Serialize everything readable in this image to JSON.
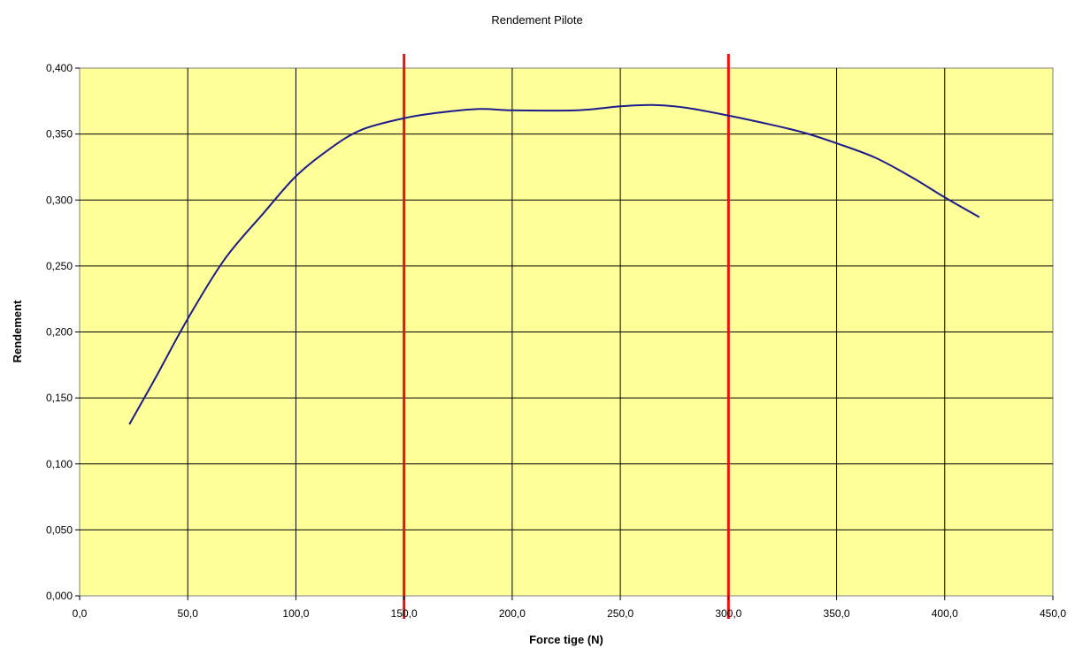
{
  "chart_data": {
    "type": "line",
    "title": "Rendement Pilote",
    "xlabel": "Force tige (N)",
    "ylabel": "Rendement",
    "xlim": [
      0,
      450
    ],
    "ylim": [
      0,
      0.4
    ],
    "x_ticks": [
      "0,0",
      "50,0",
      "100,0",
      "150,0",
      "200,0",
      "250,0",
      "300,0",
      "350,0",
      "400,0",
      "450,0"
    ],
    "y_ticks": [
      "0,000",
      "0,050",
      "0,100",
      "0,150",
      "0,200",
      "0,250",
      "0,300",
      "0,350",
      "0,400"
    ],
    "x_tick_values": [
      0,
      50,
      100,
      150,
      200,
      250,
      300,
      350,
      400,
      450
    ],
    "y_tick_values": [
      0,
      0.05,
      0.1,
      0.15,
      0.2,
      0.25,
      0.3,
      0.35,
      0.4
    ],
    "grid": true,
    "legend": "none",
    "series": [
      {
        "color": "#1c1c8c",
        "x": [
          23,
          35,
          50,
          67,
          85,
          100,
          115,
          130,
          150,
          165,
          185,
          200,
          230,
          250,
          265,
          280,
          300,
          320,
          335,
          350,
          368,
          385,
          400,
          416
        ],
        "y": [
          0.13,
          0.165,
          0.21,
          0.255,
          0.29,
          0.318,
          0.338,
          0.353,
          0.362,
          0.366,
          0.369,
          0.368,
          0.368,
          0.371,
          0.372,
          0.37,
          0.364,
          0.357,
          0.351,
          0.343,
          0.332,
          0.317,
          0.302,
          0.287
        ]
      }
    ],
    "reference_lines": [
      {
        "x": 150,
        "color": "#ee1111"
      },
      {
        "x": 300,
        "color": "#ee1111"
      }
    ],
    "colors": {
      "plot_background": "#ffff99",
      "grid": "#000000",
      "reference": "#ee1111",
      "series": "#1c1c8c"
    }
  }
}
